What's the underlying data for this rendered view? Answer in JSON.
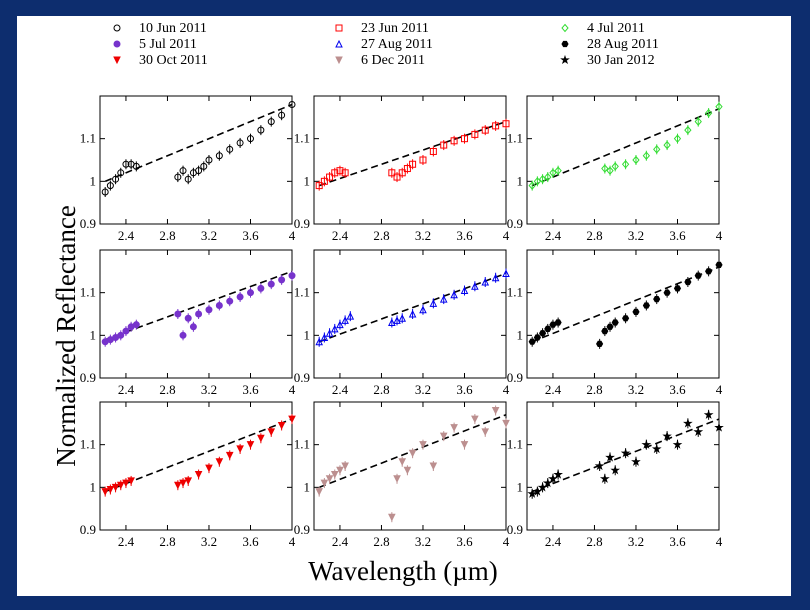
{
  "colors": {
    "frame": "#0d2d6e",
    "background": "#ffffff",
    "fit_line": "#000000"
  },
  "chart_data": {
    "type": "scatter",
    "layout": "3x3 small multiples with error bars and dashed linear fits",
    "xlabel": "Wavelength (µm)",
    "ylabel": "Normalized Reflectance",
    "xlim": [
      2.15,
      4.0
    ],
    "ylim": [
      0.9,
      1.2
    ],
    "xticks": [
      2.4,
      2.8,
      3.2,
      3.6,
      4
    ],
    "xtick_labels": [
      "2.4",
      "2.8",
      "3.2",
      "3.6",
      "4"
    ],
    "yticks": [
      0.9,
      1.0,
      1.1
    ],
    "ytick_labels": [
      "0.9",
      "1",
      "1.1"
    ],
    "series": [
      {
        "name": "10 Jun 2011",
        "marker": "circle-open",
        "color": "#000000",
        "fit": [
          [
            2.2,
            1.0
          ],
          [
            4.0,
            1.18
          ]
        ],
        "points": [
          [
            2.2,
            0.975
          ],
          [
            2.25,
            0.99
          ],
          [
            2.3,
            1.005
          ],
          [
            2.35,
            1.02
          ],
          [
            2.4,
            1.04
          ],
          [
            2.45,
            1.04
          ],
          [
            2.5,
            1.035
          ],
          [
            2.9,
            1.01
          ],
          [
            2.95,
            1.025
          ],
          [
            3.0,
            1.005
          ],
          [
            3.05,
            1.02
          ],
          [
            3.1,
            1.025
          ],
          [
            3.15,
            1.035
          ],
          [
            3.2,
            1.05
          ],
          [
            3.3,
            1.06
          ],
          [
            3.4,
            1.075
          ],
          [
            3.5,
            1.09
          ],
          [
            3.6,
            1.1
          ],
          [
            3.7,
            1.12
          ],
          [
            3.8,
            1.14
          ],
          [
            3.9,
            1.155
          ],
          [
            4.0,
            1.18
          ]
        ]
      },
      {
        "name": "23 Jun 2011",
        "marker": "square-open",
        "color": "#ff0000",
        "fit": [
          [
            2.2,
            0.99
          ],
          [
            4.0,
            1.14
          ]
        ],
        "points": [
          [
            2.2,
            0.99
          ],
          [
            2.25,
            1.0
          ],
          [
            2.3,
            1.01
          ],
          [
            2.35,
            1.02
          ],
          [
            2.4,
            1.025
          ],
          [
            2.45,
            1.02
          ],
          [
            2.9,
            1.02
          ],
          [
            2.95,
            1.01
          ],
          [
            3.0,
            1.02
          ],
          [
            3.05,
            1.03
          ],
          [
            3.1,
            1.04
          ],
          [
            3.2,
            1.05
          ],
          [
            3.3,
            1.07
          ],
          [
            3.4,
            1.085
          ],
          [
            3.5,
            1.095
          ],
          [
            3.6,
            1.1
          ],
          [
            3.7,
            1.11
          ],
          [
            3.8,
            1.12
          ],
          [
            3.9,
            1.13
          ],
          [
            4.0,
            1.135
          ]
        ]
      },
      {
        "name": "4 Jul 2011",
        "marker": "diamond-open",
        "color": "#33dd33",
        "fit": [
          [
            2.2,
            0.99
          ],
          [
            4.0,
            1.17
          ]
        ],
        "points": [
          [
            2.2,
            0.99
          ],
          [
            2.25,
            1.0
          ],
          [
            2.3,
            1.005
          ],
          [
            2.35,
            1.01
          ],
          [
            2.4,
            1.02
          ],
          [
            2.45,
            1.025
          ],
          [
            2.9,
            1.03
          ],
          [
            2.95,
            1.025
          ],
          [
            3.0,
            1.035
          ],
          [
            3.1,
            1.04
          ],
          [
            3.2,
            1.05
          ],
          [
            3.3,
            1.06
          ],
          [
            3.4,
            1.075
          ],
          [
            3.5,
            1.085
          ],
          [
            3.6,
            1.1
          ],
          [
            3.7,
            1.12
          ],
          [
            3.8,
            1.14
          ],
          [
            3.9,
            1.16
          ],
          [
            4.0,
            1.175
          ]
        ]
      },
      {
        "name": "5 Jul 2011",
        "marker": "circle-filled",
        "color": "#7733cc",
        "fit": [
          [
            2.2,
            0.99
          ],
          [
            4.0,
            1.15
          ]
        ],
        "points": [
          [
            2.2,
            0.985
          ],
          [
            2.25,
            0.99
          ],
          [
            2.3,
            0.995
          ],
          [
            2.35,
            1.0
          ],
          [
            2.4,
            1.01
          ],
          [
            2.45,
            1.02
          ],
          [
            2.5,
            1.025
          ],
          [
            2.9,
            1.05
          ],
          [
            2.95,
            1.0
          ],
          [
            3.0,
            1.04
          ],
          [
            3.05,
            1.02
          ],
          [
            3.1,
            1.05
          ],
          [
            3.2,
            1.06
          ],
          [
            3.3,
            1.07
          ],
          [
            3.4,
            1.08
          ],
          [
            3.5,
            1.09
          ],
          [
            3.6,
            1.1
          ],
          [
            3.7,
            1.11
          ],
          [
            3.8,
            1.12
          ],
          [
            3.9,
            1.13
          ],
          [
            4.0,
            1.14
          ]
        ]
      },
      {
        "name": "27 Aug 2011",
        "marker": "triangle-open",
        "color": "#0000ee",
        "fit": [
          [
            2.2,
            0.985
          ],
          [
            4.0,
            1.145
          ]
        ],
        "points": [
          [
            2.2,
            0.985
          ],
          [
            2.25,
            0.995
          ],
          [
            2.3,
            1.005
          ],
          [
            2.35,
            1.015
          ],
          [
            2.4,
            1.025
          ],
          [
            2.45,
            1.035
          ],
          [
            2.5,
            1.045
          ],
          [
            2.9,
            1.03
          ],
          [
            2.95,
            1.035
          ],
          [
            3.0,
            1.04
          ],
          [
            3.1,
            1.05
          ],
          [
            3.2,
            1.06
          ],
          [
            3.3,
            1.075
          ],
          [
            3.4,
            1.085
          ],
          [
            3.5,
            1.095
          ],
          [
            3.6,
            1.105
          ],
          [
            3.7,
            1.115
          ],
          [
            3.8,
            1.125
          ],
          [
            3.9,
            1.135
          ],
          [
            4.0,
            1.145
          ]
        ]
      },
      {
        "name": "28 Aug 2011",
        "marker": "hexagon-filled",
        "color": "#000000",
        "fit": [
          [
            2.2,
            0.985
          ],
          [
            4.0,
            1.16
          ]
        ],
        "points": [
          [
            2.2,
            0.985
          ],
          [
            2.25,
            0.995
          ],
          [
            2.3,
            1.005
          ],
          [
            2.35,
            1.015
          ],
          [
            2.4,
            1.025
          ],
          [
            2.45,
            1.03
          ],
          [
            2.85,
            0.98
          ],
          [
            2.9,
            1.01
          ],
          [
            2.95,
            1.02
          ],
          [
            3.0,
            1.03
          ],
          [
            3.1,
            1.04
          ],
          [
            3.2,
            1.055
          ],
          [
            3.3,
            1.07
          ],
          [
            3.4,
            1.085
          ],
          [
            3.5,
            1.1
          ],
          [
            3.6,
            1.11
          ],
          [
            3.7,
            1.125
          ],
          [
            3.8,
            1.14
          ],
          [
            3.9,
            1.15
          ],
          [
            4.0,
            1.165
          ]
        ]
      },
      {
        "name": "30 Oct 2011",
        "marker": "triangle-down-filled",
        "color": "#ee0000",
        "fit": [
          [
            2.2,
            0.99
          ],
          [
            4.0,
            1.16
          ]
        ],
        "points": [
          [
            2.2,
            0.99
          ],
          [
            2.25,
            0.995
          ],
          [
            2.3,
            1.0
          ],
          [
            2.35,
            1.005
          ],
          [
            2.4,
            1.01
          ],
          [
            2.45,
            1.015
          ],
          [
            2.9,
            1.005
          ],
          [
            2.95,
            1.01
          ],
          [
            3.0,
            1.015
          ],
          [
            3.1,
            1.03
          ],
          [
            3.2,
            1.045
          ],
          [
            3.3,
            1.06
          ],
          [
            3.4,
            1.075
          ],
          [
            3.5,
            1.09
          ],
          [
            3.6,
            1.1
          ],
          [
            3.7,
            1.115
          ],
          [
            3.8,
            1.13
          ],
          [
            3.9,
            1.145
          ],
          [
            4.0,
            1.16
          ]
        ]
      },
      {
        "name": "6 Dec 2011",
        "marker": "triangle-down-filled",
        "color": "#bc8f8f",
        "fit": [
          [
            2.2,
            1.0
          ],
          [
            4.0,
            1.17
          ]
        ],
        "points": [
          [
            2.2,
            0.99
          ],
          [
            2.25,
            1.01
          ],
          [
            2.3,
            1.02
          ],
          [
            2.35,
            1.03
          ],
          [
            2.4,
            1.04
          ],
          [
            2.45,
            1.05
          ],
          [
            2.9,
            0.93
          ],
          [
            2.95,
            1.02
          ],
          [
            3.0,
            1.06
          ],
          [
            3.05,
            1.04
          ],
          [
            3.1,
            1.08
          ],
          [
            3.2,
            1.1
          ],
          [
            3.3,
            1.05
          ],
          [
            3.4,
            1.12
          ],
          [
            3.5,
            1.14
          ],
          [
            3.6,
            1.1
          ],
          [
            3.7,
            1.16
          ],
          [
            3.8,
            1.13
          ],
          [
            3.9,
            1.18
          ],
          [
            4.0,
            1.15
          ]
        ]
      },
      {
        "name": "30 Jan 2012",
        "marker": "star",
        "color": "#000000",
        "fit": [
          [
            2.2,
            0.99
          ],
          [
            4.0,
            1.16
          ]
        ],
        "points": [
          [
            2.2,
            0.985
          ],
          [
            2.25,
            0.99
          ],
          [
            2.3,
            1.0
          ],
          [
            2.35,
            1.01
          ],
          [
            2.4,
            1.02
          ],
          [
            2.45,
            1.03
          ],
          [
            2.85,
            1.05
          ],
          [
            2.9,
            1.02
          ],
          [
            2.95,
            1.07
          ],
          [
            3.0,
            1.04
          ],
          [
            3.1,
            1.08
          ],
          [
            3.2,
            1.06
          ],
          [
            3.3,
            1.1
          ],
          [
            3.4,
            1.09
          ],
          [
            3.5,
            1.12
          ],
          [
            3.6,
            1.1
          ],
          [
            3.7,
            1.15
          ],
          [
            3.8,
            1.13
          ],
          [
            3.9,
            1.17
          ],
          [
            4.0,
            1.14
          ]
        ]
      }
    ]
  }
}
